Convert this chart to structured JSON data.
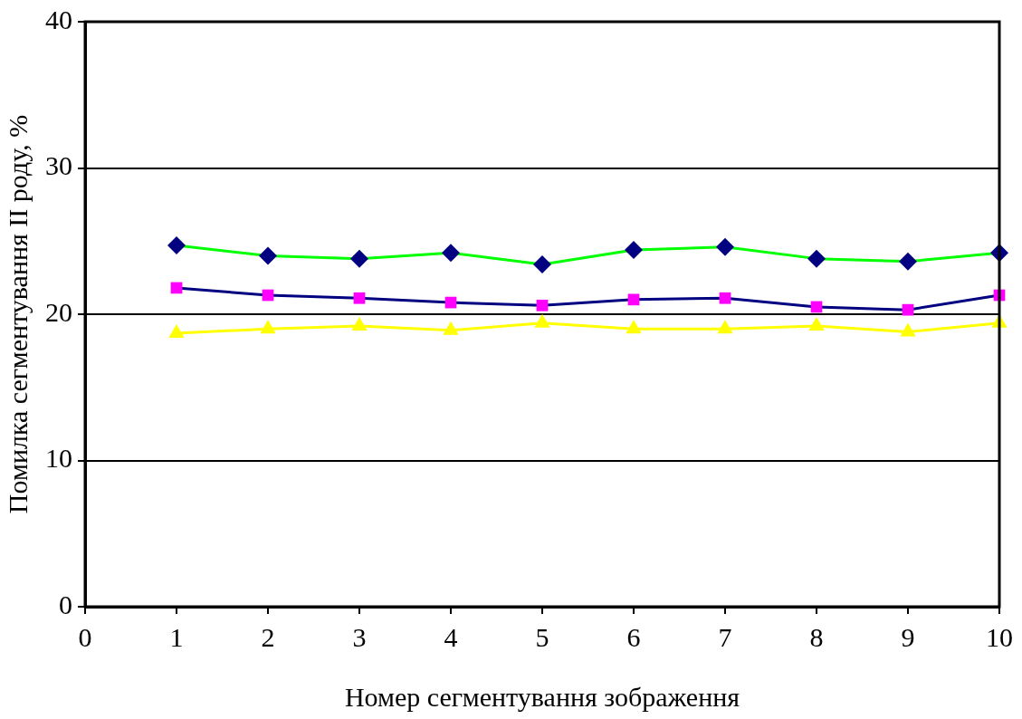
{
  "chart_data": {
    "type": "line",
    "xlabel": "Номер сегментування зображення",
    "ylabel": "Помилка сегментування II роду, %",
    "x": [
      1,
      2,
      3,
      4,
      5,
      6,
      7,
      8,
      9,
      10
    ],
    "xlim": [
      0,
      10
    ],
    "xticks": [
      0,
      1,
      2,
      3,
      4,
      5,
      6,
      7,
      8,
      9,
      10
    ],
    "ylim": [
      0,
      40
    ],
    "yticks": [
      0,
      10,
      20,
      30,
      40
    ],
    "grid": "y",
    "legend": false,
    "series": [
      {
        "color": "#00ff00",
        "colors": [
          "#000080",
          "#000080",
          "#000080",
          "#000080",
          "#000080",
          "#000080",
          "#000080",
          "#000080",
          "#000080",
          "#000080"
        ],
        "marker": "diamond",
        "values": [
          24.7,
          24.0,
          23.8,
          24.2,
          23.4,
          24.4,
          24.6,
          23.8,
          23.6,
          24.2
        ]
      },
      {
        "color": "#000080",
        "colors": [
          "#ff00ff",
          "#ff00ff",
          "#ff00ff",
          "#ff00ff",
          "#ff00ff",
          "#ff00ff",
          "#ff00ff",
          "#ff00ff",
          "#ff00ff",
          "#ff00ff"
        ],
        "marker": "square",
        "values": [
          21.8,
          21.3,
          21.1,
          20.8,
          20.6,
          21.0,
          21.1,
          20.5,
          20.3,
          21.3
        ]
      },
      {
        "color": "#ffff00",
        "colors": [
          "#ffff00",
          "#ffff00",
          "#ffff00",
          "#ffff00",
          "#ffff00",
          "#ffff00",
          "#ffff00",
          "#ffff00",
          "#ffff00",
          "#ffff00"
        ],
        "marker": "triangle",
        "values": [
          18.7,
          19.0,
          19.2,
          18.9,
          19.4,
          19.0,
          19.0,
          19.2,
          18.8,
          19.4
        ]
      }
    ]
  }
}
